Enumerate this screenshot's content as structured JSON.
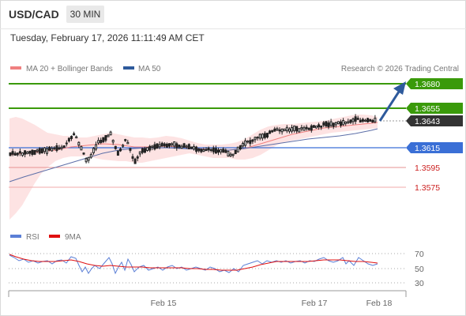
{
  "header": {
    "symbol": "USD/CAD",
    "timeframe": "30 MIN",
    "datetime": "Tuesday, February 17, 2026 11:11:49 AM CET"
  },
  "legend": {
    "items": [
      {
        "label": "MA 20 + Bollinger Bands",
        "color": "#f08080"
      },
      {
        "label": "MA 50",
        "color": "#2e5a9c"
      }
    ],
    "credit": "Research © 2026 Trading Central"
  },
  "levels": [
    {
      "value": "1.3680",
      "kind": "resistance",
      "color": "#3a9a0a"
    },
    {
      "value": "1.3655",
      "kind": "resistance",
      "color": "#3a9a0a"
    },
    {
      "value": "1.3643",
      "kind": "last",
      "color": "#333333"
    },
    {
      "value": "1.3615",
      "kind": "pivot",
      "color": "#3a6fd6"
    },
    {
      "value": "1.3595",
      "kind": "support",
      "color": "#cc1f1f"
    },
    {
      "value": "1.3575",
      "kind": "support",
      "color": "#cc1f1f"
    }
  ],
  "rsi_panel": {
    "legend": [
      {
        "label": "RSI",
        "color": "#5b7fd6"
      },
      {
        "label": "9MA",
        "color": "#e01010"
      }
    ],
    "levels": [
      "70",
      "50",
      "30"
    ]
  },
  "x_axis": {
    "labels": [
      "Feb 15",
      "Feb 17",
      "Feb 18"
    ]
  },
  "colors": {
    "candle": "#222222",
    "bollinger_fill": "#fde3e3",
    "arrow": "#2e5a9c"
  }
}
